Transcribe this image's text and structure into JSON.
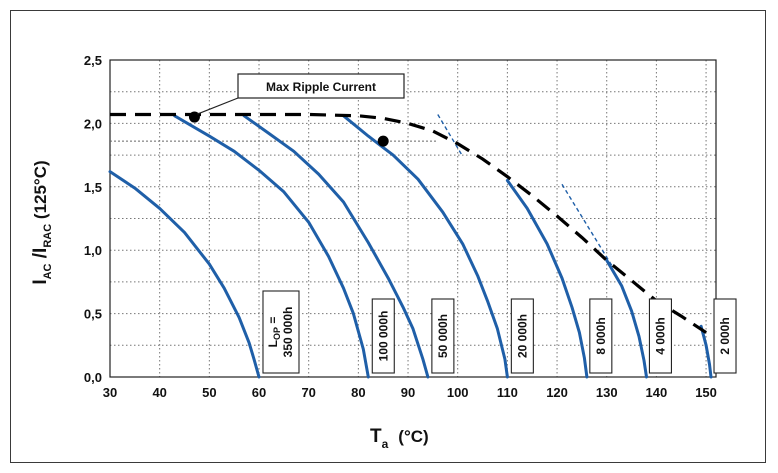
{
  "chart_data": {
    "type": "line",
    "title": "",
    "xlabel_main": "T",
    "xlabel_sub": "a",
    "xlabel_unit": "(°C)",
    "ylabel_parts": [
      "I",
      "AC",
      " /I",
      "RAC",
      " (125°C)"
    ],
    "xlim": [
      30,
      152
    ],
    "ylim": [
      0,
      2.5
    ],
    "x_ticks": [
      30,
      40,
      50,
      60,
      70,
      80,
      90,
      100,
      110,
      120,
      130,
      140,
      150
    ],
    "y_ticks": [
      0,
      0.5,
      1.0,
      1.5,
      2.0,
      2.5
    ],
    "y_tick_labels": [
      "0,0",
      "0,5",
      "1,0",
      "1,5",
      "2,0",
      "2,5"
    ],
    "grid": true,
    "colors": {
      "curve": "#1f5fa8",
      "envelope": "#000000",
      "grid": "#777777"
    },
    "annotation": {
      "text": "Max Ripple Current",
      "x": 47,
      "y": 2.05
    },
    "markers": [
      {
        "x": 47,
        "y": 2.05
      },
      {
        "x": 85,
        "y": 1.86
      }
    ],
    "envelope": {
      "name": "Max Ripple Current",
      "x": [
        30,
        40,
        50,
        60,
        70,
        80,
        85,
        90,
        95,
        100,
        105,
        110,
        115,
        120,
        125,
        130,
        135,
        140,
        145,
        150
      ],
      "y": [
        2.07,
        2.07,
        2.07,
        2.07,
        2.07,
        2.06,
        2.04,
        2.0,
        1.94,
        1.84,
        1.72,
        1.58,
        1.43,
        1.27,
        1.1,
        0.92,
        0.76,
        0.6,
        0.48,
        0.35
      ]
    },
    "series": [
      {
        "label_lines": [
          "L",
          "OP",
          " =",
          "350 000h"
        ],
        "x": [
          30,
          35,
          40,
          45,
          50,
          53,
          56,
          58,
          59,
          60
        ],
        "y": [
          1.62,
          1.49,
          1.33,
          1.14,
          0.89,
          0.7,
          0.47,
          0.27,
          0.14,
          0
        ]
      },
      {
        "label_lines": [
          "100 000h"
        ],
        "x": [
          43,
          50,
          55,
          60,
          65,
          70,
          74,
          77,
          79,
          81,
          82
        ],
        "y": [
          2.06,
          1.9,
          1.78,
          1.63,
          1.46,
          1.22,
          0.95,
          0.7,
          0.5,
          0.22,
          0
        ]
      },
      {
        "label_lines": [
          "50 000h"
        ],
        "x": [
          57,
          62,
          67,
          72,
          77,
          82,
          86,
          89,
          91,
          93,
          94
        ],
        "y": [
          2.06,
          1.92,
          1.78,
          1.6,
          1.38,
          1.06,
          0.78,
          0.55,
          0.38,
          0.14,
          0
        ]
      },
      {
        "label_lines": [
          "20 000h"
        ],
        "x": [
          77,
          82,
          87,
          92,
          97,
          101,
          104,
          106,
          108,
          109.5,
          110
        ],
        "y": [
          2.06,
          1.9,
          1.75,
          1.56,
          1.3,
          1.05,
          0.8,
          0.6,
          0.38,
          0.14,
          0
        ]
      },
      {
        "label_lines": [
          "8 000h"
        ],
        "x": [
          110,
          114,
          118,
          121,
          123,
          124.5,
          125.5,
          126
        ],
        "y": [
          1.55,
          1.33,
          1.05,
          0.78,
          0.55,
          0.35,
          0.15,
          0
        ]
      },
      {
        "label_lines": [
          "4 000h"
        ],
        "x": [
          130,
          133,
          135,
          136.5,
          137.5,
          138
        ],
        "y": [
          0.92,
          0.72,
          0.52,
          0.32,
          0.13,
          0
        ]
      },
      {
        "label_lines": [
          "2 000h"
        ],
        "x": [
          149,
          150,
          150.7,
          151
        ],
        "y": [
          0.4,
          0.25,
          0.1,
          0
        ]
      }
    ],
    "thin_dashed": [
      {
        "x": [
          96,
          101
        ],
        "y": [
          2.07,
          1.74
        ]
      },
      {
        "x": [
          121,
          131
        ],
        "y": [
          1.52,
          0.88
        ]
      }
    ],
    "hlines": [
      1.86
    ],
    "label_boxes_x": [
      60.8,
      82.8,
      94.8,
      110.8,
      126.6,
      138.6,
      151.6
    ]
  }
}
